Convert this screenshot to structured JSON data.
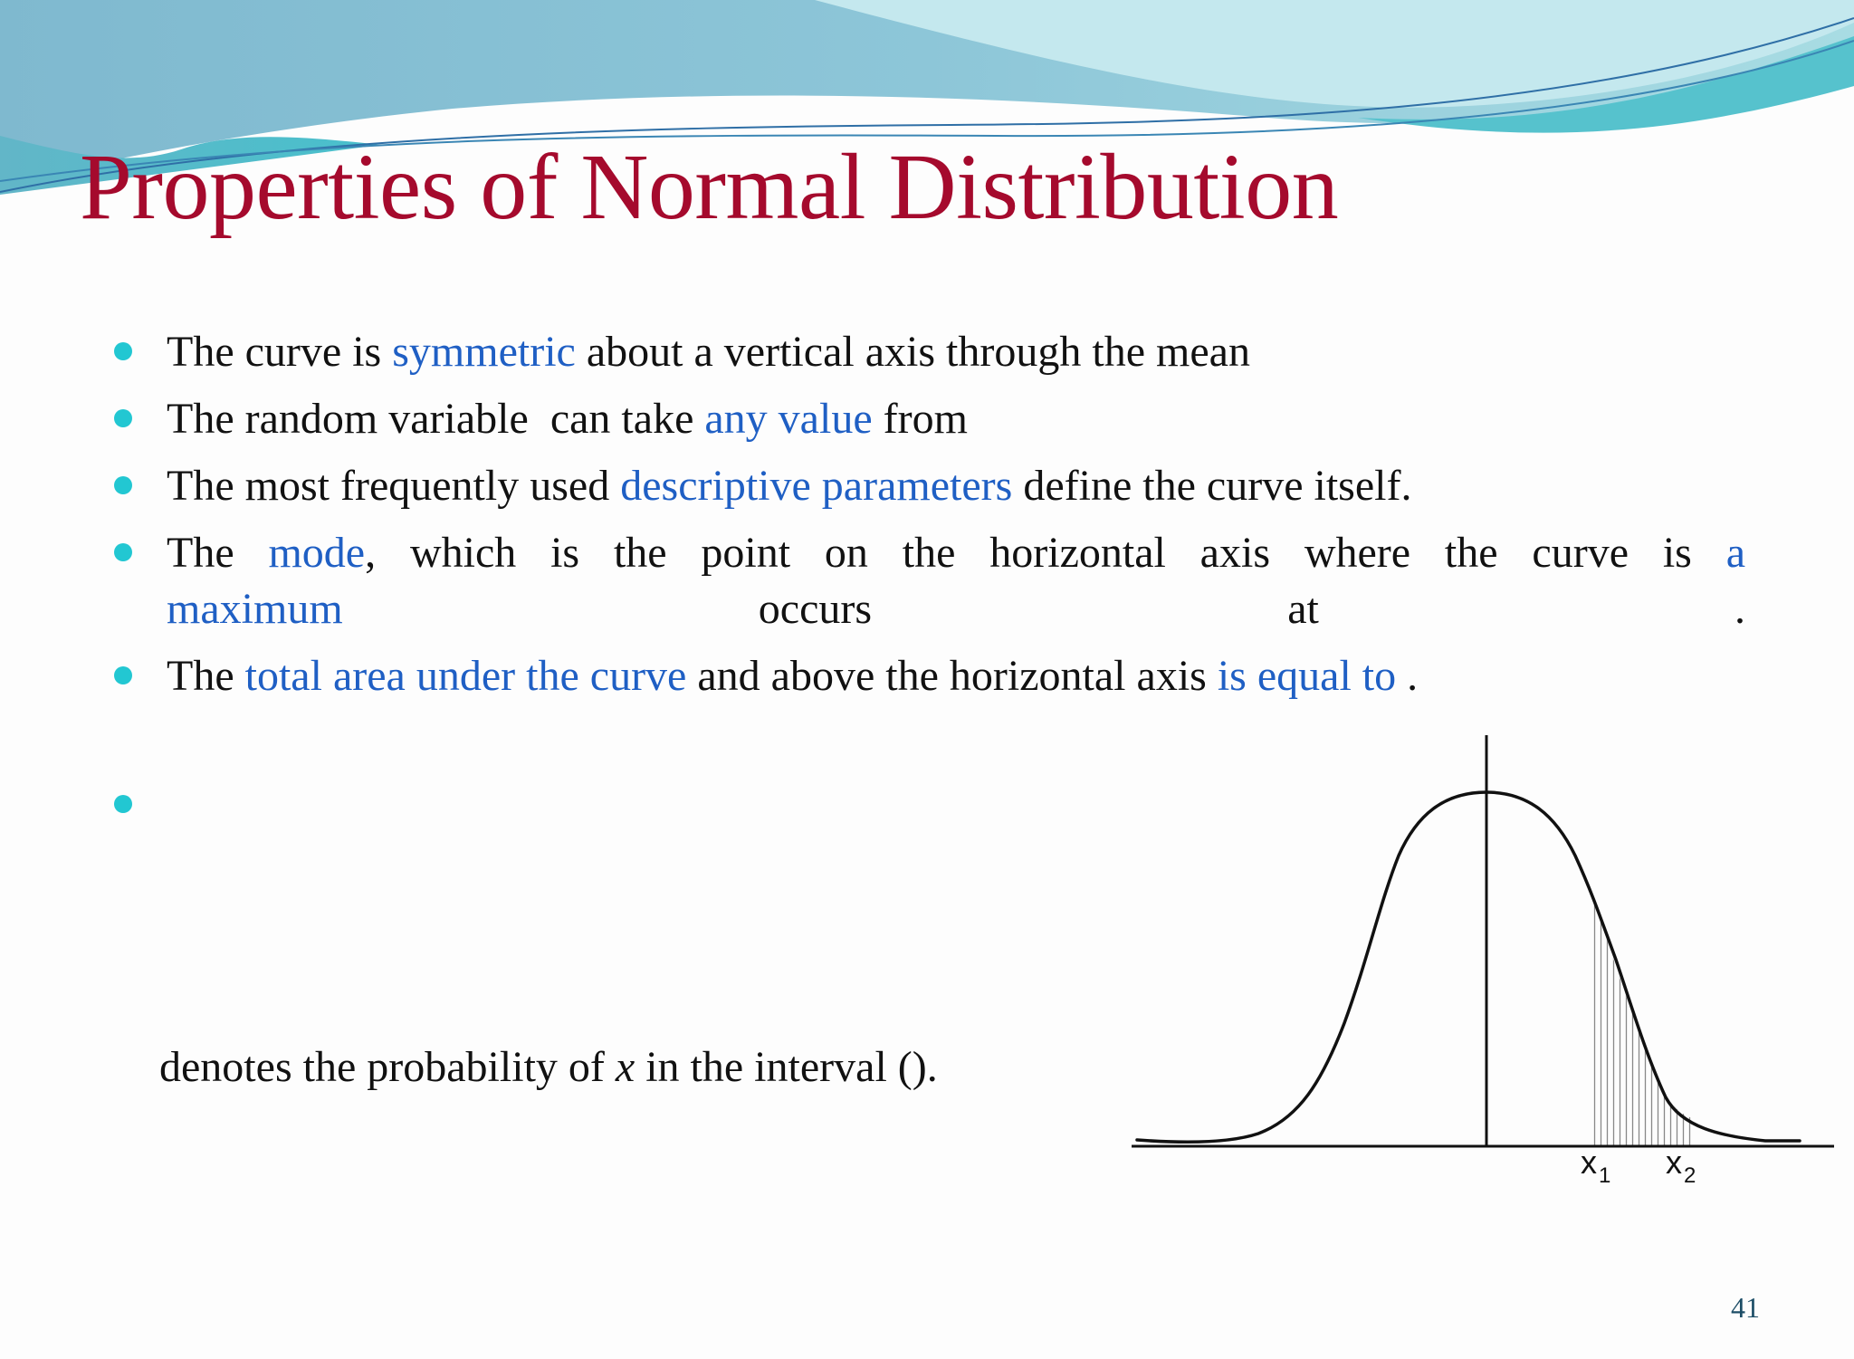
{
  "slide": {
    "title": "Properties of Normal Distribution",
    "bullets": [
      {
        "parts": [
          "The curve is ",
          "symmetric",
          " about a vertical axis through the mean"
        ]
      },
      {
        "parts": [
          "The random variable  can take ",
          "any value",
          " from"
        ]
      },
      {
        "parts": [
          "The most frequently used ",
          "descriptive parameters",
          " define the curve itself."
        ]
      },
      {
        "parts": [
          "The ",
          "mode",
          ", which is the point on the horizontal axis where the curve is ",
          "a",
          "maximum",
          " occurs at ."
        ]
      },
      {
        "parts": [
          "The ",
          "total area under the curve",
          " and above the horizontal axis ",
          "is equal to",
          " ."
        ]
      }
    ],
    "probability_text": {
      "before": "denotes the probability of ",
      "variable": "x",
      "after": " in the interval ()."
    },
    "figure": {
      "x1_label": "x",
      "x1_sub": "1",
      "x2_label": "x",
      "x2_sub": "2"
    },
    "page_number": "41",
    "colors": {
      "title": "#a50a2d",
      "highlight": "#1f5fc4",
      "bullet": "#22c7d2",
      "page_number": "#1c4d66"
    }
  }
}
